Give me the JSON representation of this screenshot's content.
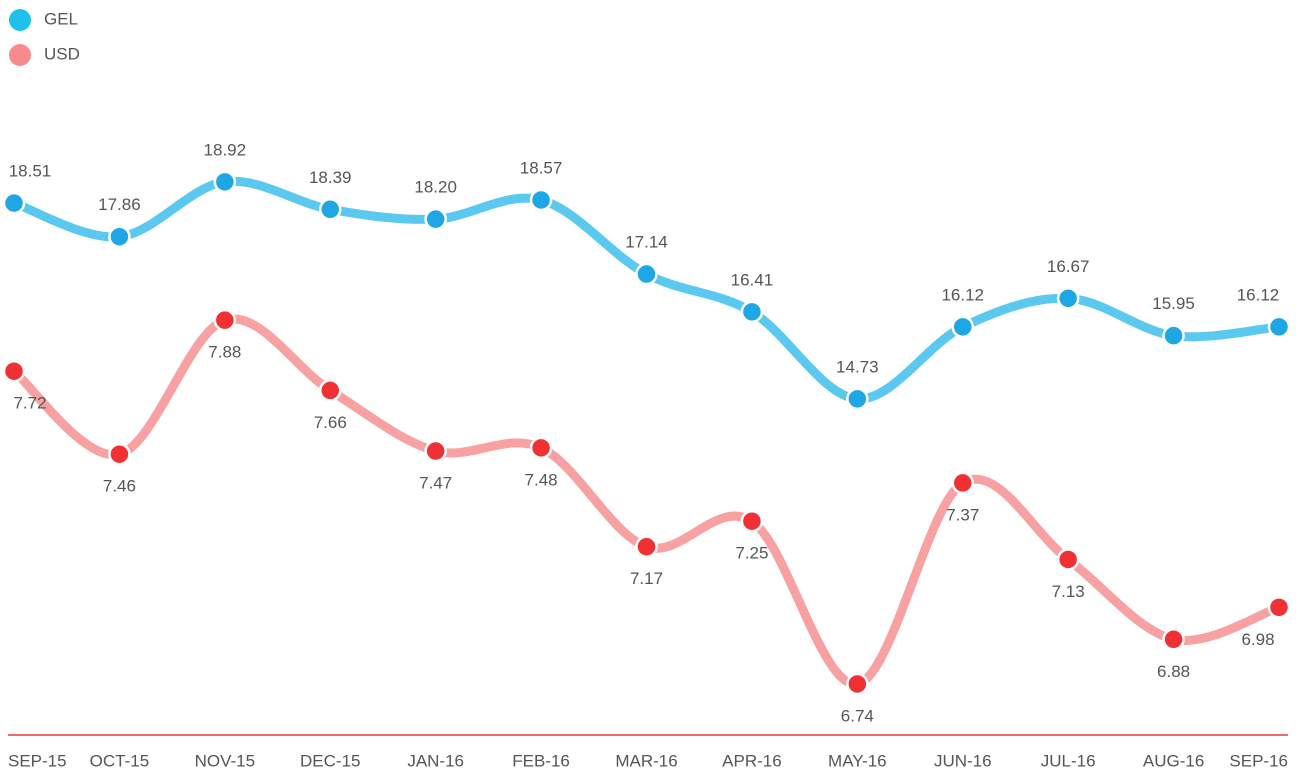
{
  "chart_data": {
    "type": "line",
    "categories": [
      "SEP-15",
      "OCT-15",
      "NOV-15",
      "DEC-15",
      "JAN-16",
      "FEB-16",
      "MAR-16",
      "APR-16",
      "MAY-16",
      "JUN-16",
      "JUL-16",
      "AUG-16",
      "SEP-16"
    ],
    "series": [
      {
        "name": "GEL",
        "color": "#5bc8ef",
        "marker_color": "#1ea7e4",
        "values": [
          18.51,
          17.86,
          18.92,
          18.39,
          18.2,
          18.57,
          17.14,
          16.41,
          14.73,
          16.12,
          16.67,
          15.95,
          16.12
        ],
        "value_labels": [
          "18.51",
          "17.86",
          "18.92",
          "18.39",
          "18.20",
          "18.57",
          "17.14",
          "16.41",
          "14.73",
          "16.12",
          "16.67",
          "15.95",
          "16.12"
        ]
      },
      {
        "name": "USD",
        "color": "#f7a1a3",
        "marker_color": "#f03033",
        "axis": "y2",
        "values": [
          7.72,
          7.46,
          7.88,
          7.66,
          7.47,
          7.48,
          7.17,
          7.25,
          6.74,
          7.37,
          7.13,
          6.88,
          6.98
        ],
        "value_labels": [
          "7.72",
          "7.46",
          "7.88",
          "7.66",
          "7.47",
          "7.48",
          "7.17",
          "7.25",
          "6.74",
          "7.37",
          "7.13",
          "6.88",
          "6.98"
        ]
      }
    ],
    "ylim": [
      8.24,
      20.5
    ],
    "y2lim": [
      6.58,
      8.57
    ],
    "legend": "top-left"
  }
}
